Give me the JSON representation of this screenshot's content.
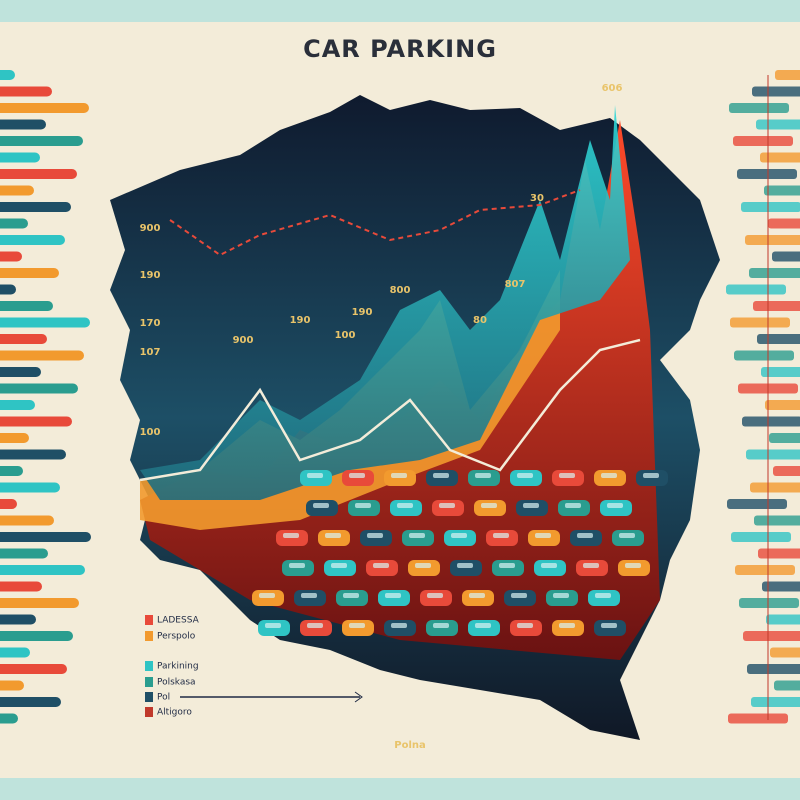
{
  "header": {
    "title": "CAR PARKING"
  },
  "annotations": [
    "606",
    "900",
    "190",
    "170",
    "107",
    "100",
    "900",
    "190",
    "100",
    "190",
    "800",
    "80",
    "807",
    "30",
    "Polna"
  ],
  "legend": [
    "LADESSA",
    "Perspolo",
    "Parkining",
    "Polskasa",
    "Pol",
    "Altigoro"
  ]
}
